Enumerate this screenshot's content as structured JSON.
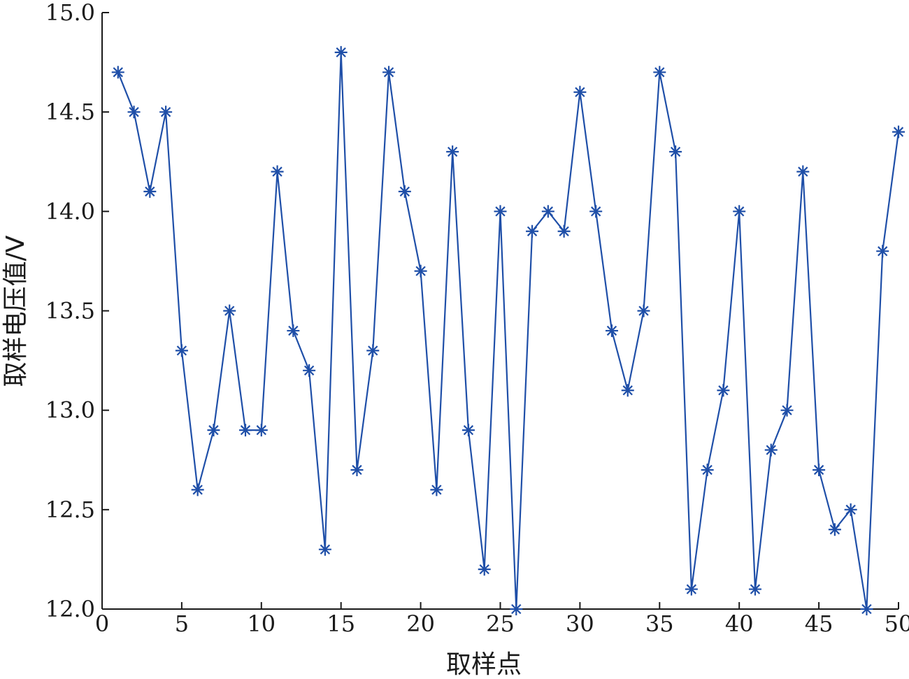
{
  "chart_data": {
    "type": "line",
    "title": "",
    "xlabel": "取样点",
    "ylabel": "取样电压值/V",
    "xlim": [
      0,
      50
    ],
    "ylim": [
      12.0,
      15.0
    ],
    "grid": false,
    "legend": "none",
    "x_ticks": [
      "0",
      "5",
      "10",
      "15",
      "20",
      "25",
      "30",
      "35",
      "40",
      "45",
      "50"
    ],
    "y_ticks": [
      "12.0",
      "12.5",
      "13.0",
      "13.5",
      "14.0",
      "14.5",
      "15.0"
    ],
    "series": [
      {
        "marker": "asterisk",
        "color": "#1f4fa8",
        "x": [
          1,
          2,
          3,
          4,
          5,
          6,
          7,
          8,
          9,
          10,
          11,
          12,
          13,
          14,
          15,
          16,
          17,
          18,
          19,
          20,
          21,
          22,
          23,
          24,
          25,
          26,
          27,
          28,
          29,
          30,
          31,
          32,
          33,
          34,
          35,
          36,
          37,
          38,
          39,
          40,
          41,
          42,
          43,
          44,
          45,
          46,
          47,
          48,
          49,
          50
        ],
        "y": [
          14.7,
          14.5,
          14.1,
          14.5,
          13.3,
          12.6,
          12.9,
          13.5,
          12.9,
          12.9,
          14.2,
          13.4,
          13.2,
          12.3,
          14.8,
          12.7,
          13.3,
          14.7,
          14.1,
          13.7,
          12.6,
          14.3,
          12.9,
          12.2,
          14.0,
          12.0,
          13.9,
          14.0,
          13.9,
          14.6,
          14.0,
          13.4,
          13.1,
          13.5,
          14.7,
          14.3,
          12.1,
          12.7,
          13.1,
          14.0,
          12.1,
          12.8,
          13.0,
          14.2,
          12.7,
          12.4,
          12.5,
          12.0,
          13.8,
          14.4
        ]
      }
    ]
  }
}
